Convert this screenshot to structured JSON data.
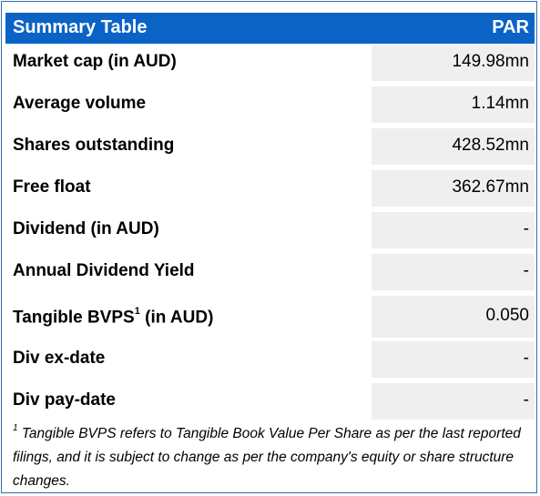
{
  "header": {
    "title": "Summary Table",
    "ticker": "PAR"
  },
  "rows": [
    {
      "label": "Market cap (in AUD)",
      "value": "149.98mn"
    },
    {
      "label": "Average volume",
      "value": "1.14mn"
    },
    {
      "label": "Shares outstanding",
      "value": "428.52mn"
    },
    {
      "label": "Free float",
      "value": "362.67mn"
    },
    {
      "label": "Dividend (in AUD)",
      "value": "-"
    },
    {
      "label": "Annual Dividend Yield",
      "value": "-"
    },
    {
      "label": "Tangible BVPS",
      "label_sup": "1",
      "label_suffix": " (in AUD)",
      "value": "0.050"
    },
    {
      "label": "Div ex-date",
      "value": "-"
    },
    {
      "label": "Div pay-date",
      "value": "-"
    }
  ],
  "footnote": {
    "marker": "1",
    "text": " Tangible BVPS refers to Tangible Book Value Per Share as per the last reported filings, and it is subject to change as per the company's equity or share structure changes."
  }
}
